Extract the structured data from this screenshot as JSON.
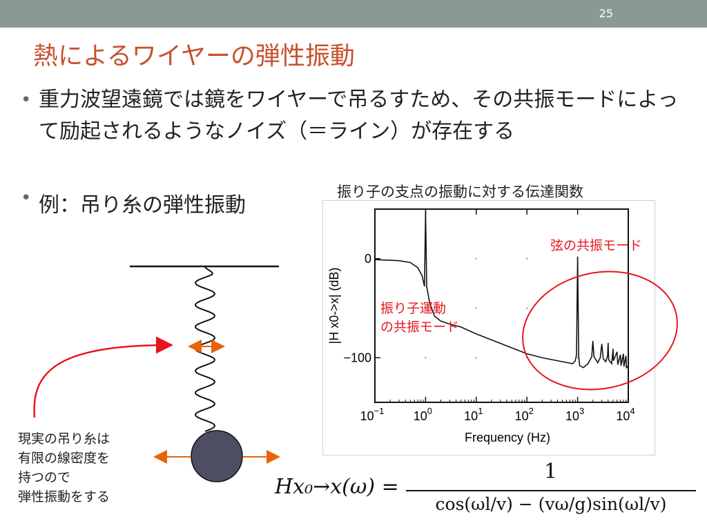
{
  "slide": {
    "number": "25"
  },
  "title": "熱によるワイヤーの弾性振動",
  "bullets": [
    {
      "text": "重力波望遠鏡では鏡をワイヤーで吊るすため、その共振モードによって励起されるようなノイズ（＝ライン）が存在する"
    },
    {
      "text": "例：吊り糸の弾性振動"
    }
  ],
  "figure": {
    "caption": "振り子の支点の振動に対する伝達関数",
    "annotation_string": "弦の共振モード",
    "annotation_pendulum": [
      "振り子運動",
      "の共振モード"
    ],
    "annotation_color": "#e8141c"
  },
  "chart_data": {
    "type": "line",
    "xscale": "log",
    "xlabel": "Frequency (Hz)",
    "ylabel": "|H x0->x| (dB)",
    "xlim": [
      0.1,
      10000
    ],
    "ylim": [
      -145,
      50
    ],
    "x_ticks": [
      "10",
      "10",
      "10",
      "10",
      "10",
      "10"
    ],
    "x_tick_exponents": [
      "−1",
      "0",
      "1",
      "2",
      "3",
      "4"
    ],
    "y_ticks": [
      {
        "value": 0,
        "label": "0"
      },
      {
        "value": -100,
        "label": "−100"
      }
    ],
    "series": [
      {
        "x": [
          0.1,
          0.3,
          0.5,
          0.7,
          0.85,
          0.95,
          1.0,
          1.05,
          1.2,
          1.5,
          2,
          3,
          5,
          10,
          20,
          50,
          100,
          200,
          500,
          800,
          900,
          950,
          1000,
          1050,
          1100,
          1300,
          1600,
          1900,
          2000,
          2100,
          2500,
          2800,
          3000,
          3200,
          3600,
          3900,
          4000,
          4100,
          4700,
          4900,
          5000,
          5100,
          6000,
          6200,
          7000,
          7200,
          8000,
          8200,
          9000,
          9200,
          10000
        ],
        "y": [
          -1,
          -2,
          -4,
          -9,
          -17,
          -28,
          48,
          -28,
          -44,
          -58,
          -63,
          -66,
          -69,
          -76,
          -82,
          -90,
          -96,
          -100,
          -104,
          -106,
          -103,
          -97,
          2,
          -99,
          -108,
          -110,
          -106,
          -99,
          -83,
          -99,
          -105,
          -100,
          -86,
          -101,
          -104,
          -98,
          -85,
          -102,
          -106,
          -96,
          -91,
          -103,
          -94,
          -107,
          -97,
          -108,
          -96,
          -109,
          -98,
          -110,
          -108
        ]
      }
    ]
  },
  "note": [
    "現実の吊り糸は",
    "有限の線密度を",
    "持つので",
    "弾性振動をする"
  ],
  "formula": {
    "lhs": "Hx₀→x(ω) =",
    "numerator": "1",
    "denominator": "cos(ωl/v) − (vω/g)sin(ωl/v)"
  },
  "colors": {
    "topbar": "#8a9a92",
    "title": "#c8502e",
    "arrow": "#e8630a",
    "callout": "#e8141c",
    "ball": "#4d4e63"
  }
}
